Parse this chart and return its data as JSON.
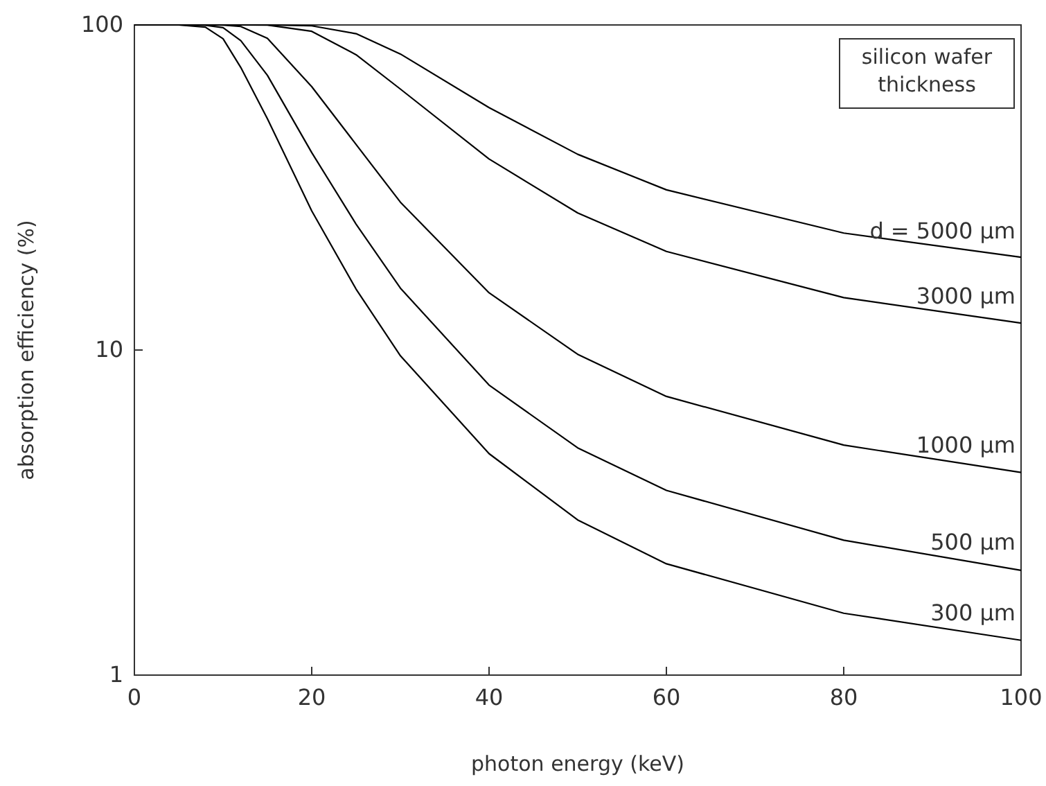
{
  "chart_data": {
    "type": "line",
    "xlabel": "photon energy (keV)",
    "ylabel": "absorption efficiency (%)",
    "legend_title": "silicon wafer thickness",
    "log": "y",
    "xlim": [
      0,
      100
    ],
    "ylim": [
      1,
      100
    ],
    "xticks": [
      0,
      20,
      40,
      60,
      80,
      100
    ],
    "yticks": [
      1,
      10,
      100
    ],
    "grid": false,
    "marker": "none",
    "line_style": "solid",
    "series": [
      {
        "name": "d = 5000 µm",
        "color": "#000000",
        "x": [
          0,
          5,
          8,
          10,
          15,
          20,
          25,
          30,
          40,
          50,
          60,
          80,
          100
        ],
        "values": [
          100,
          100,
          100,
          100,
          100,
          99.4,
          94,
          81.4,
          55.7,
          40,
          31.1,
          22.9,
          19.3
        ]
      },
      {
        "name": "3000 µm",
        "color": "#000000",
        "x": [
          0,
          5,
          8,
          10,
          12,
          15,
          20,
          25,
          30,
          40,
          50,
          60,
          80,
          100
        ],
        "values": [
          100,
          100,
          100,
          100,
          100,
          99.9,
          95.6,
          81,
          63.5,
          38.7,
          26.4,
          20.1,
          14.5,
          12.1
        ]
      },
      {
        "name": "1000 µm",
        "color": "#000000",
        "x": [
          0,
          5,
          8,
          10,
          12,
          15,
          20,
          25,
          30,
          40,
          50,
          60,
          80,
          100
        ],
        "values": [
          100,
          100,
          100,
          99.9,
          98.9,
          91,
          64.6,
          42.9,
          28.5,
          15,
          9.7,
          7.2,
          5.1,
          4.2
        ]
      },
      {
        "name": "500 µm",
        "color": "#000000",
        "x": [
          0,
          5,
          8,
          10,
          12,
          15,
          20,
          25,
          30,
          40,
          50,
          60,
          80,
          100
        ],
        "values": [
          100,
          100,
          99.8,
          98.1,
          89.5,
          70,
          40.5,
          24.4,
          15.5,
          7.8,
          5,
          3.7,
          2.6,
          2.1
        ]
      },
      {
        "name": "300 µm",
        "color": "#000000",
        "x": [
          0,
          5,
          8,
          10,
          12,
          15,
          20,
          25,
          30,
          40,
          50,
          60,
          80,
          100
        ],
        "values": [
          100,
          100,
          98.5,
          90.7,
          74,
          51.5,
          26.8,
          15.4,
          9.6,
          4.8,
          3,
          2.2,
          1.55,
          1.28
        ]
      }
    ]
  }
}
